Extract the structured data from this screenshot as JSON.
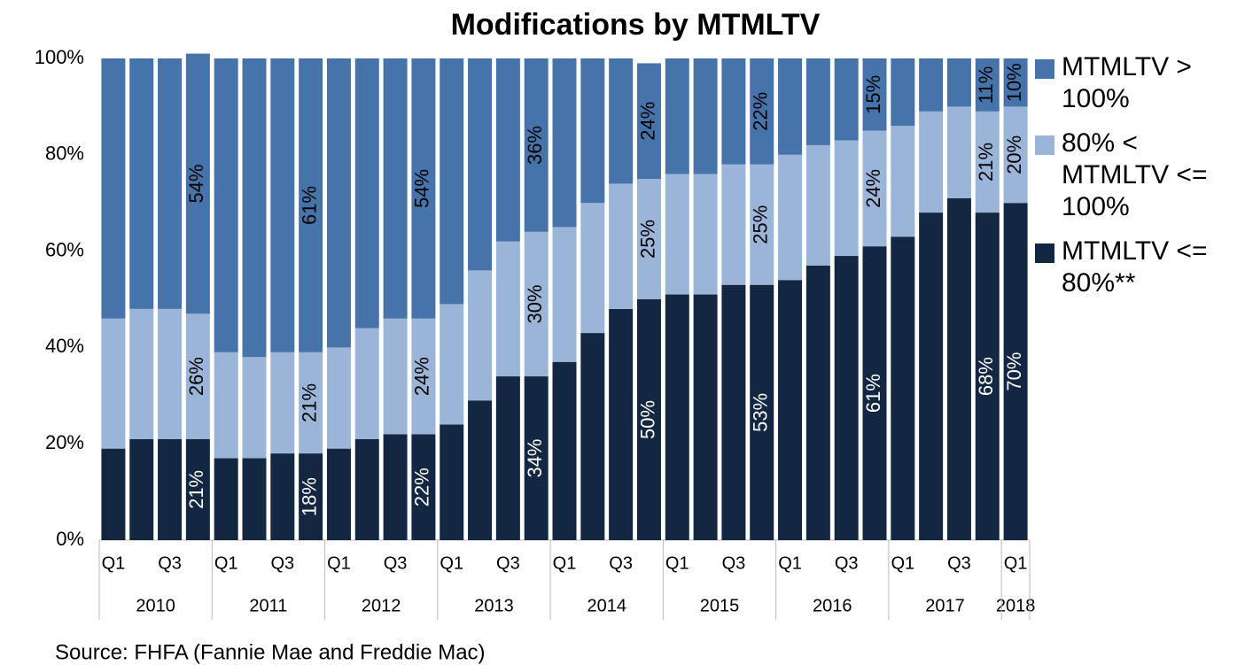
{
  "chart_data": {
    "type": "stacked_bar",
    "title": "Modifications by MTMLTV",
    "source": "Source: FHFA (Fannie Mae and Freddie Mac)",
    "categories": [
      "Q1",
      null,
      "Q3",
      null,
      "Q1",
      null,
      "Q3",
      null,
      "Q1",
      null,
      "Q3",
      null,
      "Q1",
      null,
      "Q3",
      null,
      "Q1",
      null,
      "Q3",
      null,
      "Q1",
      null,
      "Q3",
      null,
      "Q1",
      null,
      "Q3",
      null,
      "Q1",
      null,
      "Q3",
      null,
      "Q1"
    ],
    "groups": [
      "2010",
      "2011",
      "2012",
      "2013",
      "2014",
      "2015",
      "2016",
      "2017",
      "2018"
    ],
    "ylim": [
      0,
      100
    ],
    "yticks": [
      {
        "value": 0,
        "label": "0%"
      },
      {
        "value": 20,
        "label": "20%"
      },
      {
        "value": 40,
        "label": "40%"
      },
      {
        "value": 60,
        "label": "60%"
      },
      {
        "value": 80,
        "label": "80%"
      },
      {
        "value": 100,
        "label": "100%"
      }
    ],
    "grid": false,
    "legend": "right",
    "series": [
      {
        "name": "MTMLTV > 100%",
        "color": "#4674aa",
        "values": [
          54,
          52,
          52,
          54,
          61,
          62,
          61,
          61,
          60,
          56,
          54,
          54,
          51,
          44,
          38,
          36,
          35,
          30,
          26,
          24,
          24,
          24,
          22,
          22,
          20,
          18,
          17,
          15,
          14,
          11,
          10,
          11,
          10
        ],
        "value_labels": [
          null,
          null,
          null,
          "54%",
          null,
          null,
          null,
          "61%",
          null,
          null,
          null,
          "54%",
          null,
          null,
          null,
          "36%",
          null,
          null,
          null,
          "24%",
          null,
          null,
          null,
          "22%",
          null,
          null,
          null,
          "15%",
          null,
          null,
          null,
          "11%",
          "10%"
        ]
      },
      {
        "name": "80% < MTMLTV <= 100%",
        "color": "#9bb5d8",
        "values": [
          27,
          27,
          27,
          26,
          22,
          21,
          21,
          21,
          21,
          23,
          24,
          24,
          25,
          27,
          28,
          30,
          28,
          27,
          26,
          25,
          25,
          25,
          25,
          25,
          26,
          25,
          24,
          24,
          23,
          21,
          19,
          21,
          20
        ],
        "value_labels": [
          null,
          null,
          null,
          "26%",
          null,
          null,
          null,
          "21%",
          null,
          null,
          null,
          "24%",
          null,
          null,
          null,
          "30%",
          null,
          null,
          null,
          "25%",
          null,
          null,
          null,
          "25%",
          null,
          null,
          null,
          "24%",
          null,
          null,
          null,
          "21%",
          "20%"
        ]
      },
      {
        "name": "MTMLTV <= 80%**",
        "color": "#132743",
        "values": [
          19,
          21,
          21,
          21,
          17,
          17,
          18,
          18,
          19,
          21,
          22,
          22,
          24,
          29,
          34,
          34,
          37,
          43,
          48,
          50,
          51,
          51,
          53,
          53,
          54,
          57,
          59,
          61,
          63,
          68,
          71,
          68,
          70
        ],
        "value_labels": [
          null,
          null,
          null,
          "21%",
          null,
          null,
          null,
          "18%",
          null,
          null,
          null,
          "22%",
          null,
          null,
          null,
          "34%",
          null,
          null,
          null,
          "50%",
          null,
          null,
          null,
          "53%",
          null,
          null,
          null,
          "61%",
          null,
          null,
          null,
          "68%",
          "70%"
        ]
      }
    ]
  }
}
